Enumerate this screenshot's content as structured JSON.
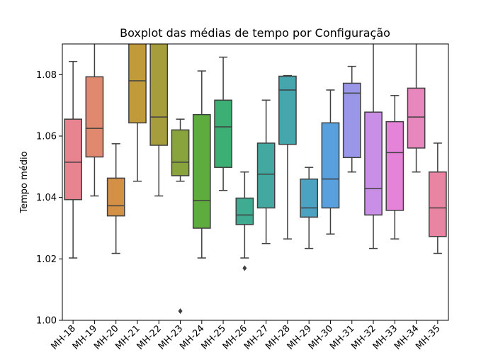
{
  "chart_data": {
    "type": "boxplot",
    "title": "Boxplot das médias de tempo por Configuração",
    "xlabel": "",
    "ylabel": "Tempo médio",
    "ylim": [
      1.0,
      1.09
    ],
    "yticks": [
      "1.00",
      "1.02",
      "1.04",
      "1.06",
      "1.08"
    ],
    "grid": false,
    "categories": [
      "MH-18",
      "MH-19",
      "MH-20",
      "MH-21",
      "MH-22",
      "MH-23",
      "MH-24",
      "MH-25",
      "MH-26",
      "MH-27",
      "MH-28",
      "MH-29",
      "MH-30",
      "MH-31",
      "MH-32",
      "MH-33",
      "MH-34",
      "MH-35"
    ],
    "colors": [
      "#e8848f",
      "#e0896e",
      "#d49045",
      "#c19a3a",
      "#a69e3d",
      "#8aa43d",
      "#5eac3d",
      "#3cb074",
      "#3fab91",
      "#43a89f",
      "#45a6ad",
      "#4aa3c0",
      "#58a1de",
      "#9a97e8",
      "#c98ee6",
      "#e583d9",
      "#e887be",
      "#ea84a3"
    ],
    "boxes": [
      {
        "whislo": 1.0203,
        "q1": 1.0393,
        "med": 1.0515,
        "q3": 1.0655,
        "whishi": 1.0843,
        "fliers": []
      },
      {
        "whislo": 1.0405,
        "q1": 1.0532,
        "med": 1.0625,
        "q3": 1.0793,
        "whishi": 1.0918,
        "fliers": []
      },
      {
        "whislo": 1.0218,
        "q1": 1.034,
        "med": 1.0373,
        "q3": 1.0463,
        "whishi": 1.0575,
        "fliers": []
      },
      {
        "whislo": 1.0453,
        "q1": 1.0643,
        "med": 1.078,
        "q3": 1.0918,
        "whishi": 1.0918,
        "fliers": []
      },
      {
        "whislo": 1.0405,
        "q1": 1.057,
        "med": 1.0662,
        "q3": 1.0918,
        "whishi": 1.0918,
        "fliers": []
      },
      {
        "whislo": 1.0453,
        "q1": 1.0471,
        "med": 1.0515,
        "q3": 1.062,
        "whishi": 1.0655,
        "fliers": [
          1.003
        ]
      },
      {
        "whislo": 1.0203,
        "q1": 1.03,
        "med": 1.039,
        "q3": 1.067,
        "whishi": 1.0812,
        "fliers": []
      },
      {
        "whislo": 1.0423,
        "q1": 1.0498,
        "med": 1.063,
        "q3": 1.0717,
        "whishi": 1.0857,
        "fliers": []
      },
      {
        "whislo": 1.0203,
        "q1": 1.0312,
        "med": 1.0343,
        "q3": 1.0398,
        "whishi": 1.0483,
        "fliers": [
          1.017
        ]
      },
      {
        "whislo": 1.025,
        "q1": 1.0366,
        "med": 1.0476,
        "q3": 1.0577,
        "whishi": 1.0717,
        "fliers": []
      },
      {
        "whislo": 1.0265,
        "q1": 1.0573,
        "med": 1.075,
        "q3": 1.0795,
        "whishi": 1.0797,
        "fliers": []
      },
      {
        "whislo": 1.0234,
        "q1": 1.0336,
        "med": 1.0366,
        "q3": 1.046,
        "whishi": 1.0498,
        "fliers": []
      },
      {
        "whislo": 1.0281,
        "q1": 1.0366,
        "med": 1.046,
        "q3": 1.0643,
        "whishi": 1.075,
        "fliers": []
      },
      {
        "whislo": 1.0483,
        "q1": 1.053,
        "med": 1.074,
        "q3": 1.0772,
        "whishi": 1.0827,
        "fliers": []
      },
      {
        "whislo": 1.0234,
        "q1": 1.0343,
        "med": 1.0429,
        "q3": 1.0678,
        "whishi": 1.0918,
        "fliers": []
      },
      {
        "whislo": 1.0265,
        "q1": 1.0358,
        "med": 1.0546,
        "q3": 1.0647,
        "whishi": 1.0732,
        "fliers": []
      },
      {
        "whislo": 1.0483,
        "q1": 1.0561,
        "med": 1.0662,
        "q3": 1.0756,
        "whishi": 1.0918,
        "fliers": []
      },
      {
        "whislo": 1.0218,
        "q1": 1.0273,
        "med": 1.0366,
        "q3": 1.0483,
        "whishi": 1.0577,
        "fliers": []
      }
    ]
  }
}
